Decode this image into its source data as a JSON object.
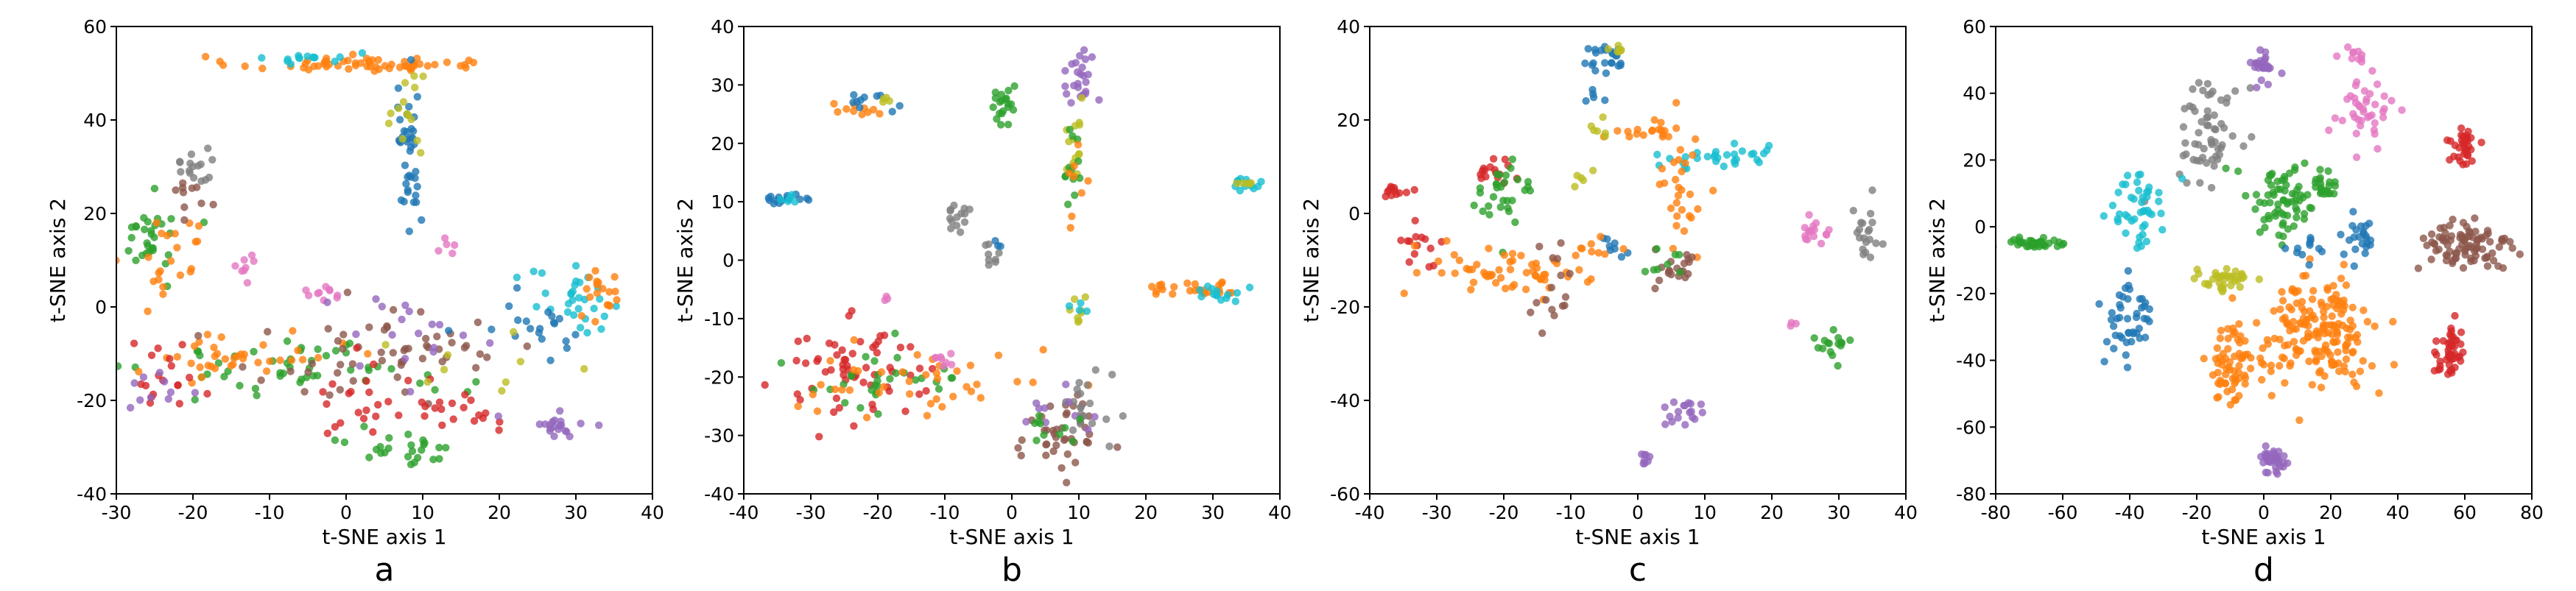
{
  "chart_data": [
    {
      "type": "scatter",
      "panel_label": "a",
      "xlabel": "t-SNE axis 1",
      "ylabel": "t-SNE axis 2",
      "xlim": [
        -30,
        40
      ],
      "ylim": [
        -40,
        60
      ],
      "xticks": [
        "-30",
        "-20",
        "-10",
        "0",
        "10",
        "20",
        "30",
        "40"
      ],
      "yticks": [
        "60",
        "40",
        "20",
        "0",
        "-20",
        "-40"
      ],
      "clusters": [
        {
          "color": "#ff7f0e",
          "cx": 1,
          "cy": 52,
          "sx": 8,
          "sy": 0.8,
          "n": 60
        },
        {
          "color": "#17becf",
          "cx": -4,
          "cy": 53,
          "sx": 3,
          "sy": 0.8,
          "n": 14
        },
        {
          "color": "#1f77b4",
          "cx": 8,
          "cy": 35,
          "sx": 1,
          "sy": 9,
          "n": 40
        },
        {
          "color": "#bcbd22",
          "cx": 8,
          "cy": 40,
          "sx": 1,
          "sy": 6,
          "n": 14
        },
        {
          "color": "#2ca02c",
          "cx": -25,
          "cy": 15,
          "sx": 2,
          "sy": 4,
          "n": 30
        },
        {
          "color": "#ff7f0e",
          "cx": -23,
          "cy": 12,
          "sx": 2.5,
          "sy": 5,
          "n": 22
        },
        {
          "color": "#7f7f7f",
          "cx": -20,
          "cy": 30,
          "sx": 1.5,
          "sy": 3,
          "n": 16
        },
        {
          "color": "#8c564b",
          "cx": -20,
          "cy": 25,
          "sx": 1.5,
          "sy": 3,
          "n": 10
        },
        {
          "color": "#e377c2",
          "cx": -13,
          "cy": 8,
          "sx": 1,
          "sy": 2,
          "n": 8
        },
        {
          "color": "#e377c2",
          "cx": 13,
          "cy": 12,
          "sx": 0.8,
          "sy": 1,
          "n": 5
        },
        {
          "color": "#e377c2",
          "cx": -2,
          "cy": 3,
          "sx": 1.5,
          "sy": 1,
          "n": 10
        },
        {
          "color": "#2ca02c",
          "cx": -5,
          "cy": -13,
          "sx": 10,
          "sy": 3,
          "n": 50
        },
        {
          "color": "#ff7f0e",
          "cx": -15,
          "cy": -11,
          "sx": 7,
          "sy": 3,
          "n": 40
        },
        {
          "color": "#8c564b",
          "cx": 5,
          "cy": -10,
          "sx": 10,
          "sy": 5,
          "n": 55
        },
        {
          "color": "#d62728",
          "cx": 10,
          "cy": -20,
          "sx": 8,
          "sy": 4,
          "n": 40
        },
        {
          "color": "#17becf",
          "cx": 30,
          "cy": 0,
          "sx": 3,
          "sy": 4,
          "n": 30
        },
        {
          "color": "#9467bd",
          "cx": 28,
          "cy": -25,
          "sx": 3,
          "sy": 1.5,
          "n": 20
        },
        {
          "color": "#2ca02c",
          "cx": 8,
          "cy": -30,
          "sx": 4,
          "sy": 2,
          "n": 25
        },
        {
          "color": "#d62728",
          "cx": -24,
          "cy": -15,
          "sx": 2,
          "sy": 4,
          "n": 18
        },
        {
          "color": "#9467bd",
          "cx": -25,
          "cy": -18,
          "sx": 2,
          "sy": 3,
          "n": 10
        },
        {
          "color": "#1f77b4",
          "cx": 25,
          "cy": -5,
          "sx": 4,
          "sy": 3,
          "n": 20
        },
        {
          "color": "#ff7f0e",
          "cx": 33,
          "cy": 3,
          "sx": 2,
          "sy": 3,
          "n": 18
        },
        {
          "color": "#9467bd",
          "cx": 10,
          "cy": -5,
          "sx": 8,
          "sy": 4,
          "n": 18
        },
        {
          "color": "#bcbd22",
          "cx": 20,
          "cy": -10,
          "sx": 8,
          "sy": 5,
          "n": 10
        }
      ]
    },
    {
      "type": "scatter",
      "panel_label": "b",
      "xlabel": "t-SNE axis 1",
      "ylabel": "t-SNE axis 2",
      "xlim": [
        -40,
        40
      ],
      "ylim": [
        -40,
        40
      ],
      "xticks": [
        "-40",
        "-30",
        "-20",
        "-10",
        "0",
        "10",
        "20",
        "30",
        "40"
      ],
      "yticks": [
        "40",
        "30",
        "20",
        "10",
        "0",
        "-10",
        "-20",
        "-30",
        "-40"
      ],
      "clusters": [
        {
          "color": "#1f77b4",
          "cx": -34,
          "cy": 10.5,
          "sx": 2,
          "sy": 0.4,
          "n": 16
        },
        {
          "color": "#17becf",
          "cx": -33,
          "cy": 10.5,
          "sx": 1.5,
          "sy": 0.4,
          "n": 6
        },
        {
          "color": "#ff7f0e",
          "cx": -24,
          "cy": 26,
          "sx": 2,
          "sy": 0.6,
          "n": 10
        },
        {
          "color": "#1f77b4",
          "cx": -21,
          "cy": 27,
          "sx": 2,
          "sy": 0.8,
          "n": 10
        },
        {
          "color": "#bcbd22",
          "cx": -20,
          "cy": 28,
          "sx": 1,
          "sy": 0.5,
          "n": 4
        },
        {
          "color": "#2ca02c",
          "cx": -1,
          "cy": 26,
          "sx": 1,
          "sy": 1.5,
          "n": 20
        },
        {
          "color": "#9467bd",
          "cx": 10,
          "cy": 31,
          "sx": 1.3,
          "sy": 3,
          "n": 24
        },
        {
          "color": "#bcbd22",
          "cx": 9.5,
          "cy": 20,
          "sx": 0.8,
          "sy": 5,
          "n": 14
        },
        {
          "color": "#2ca02c",
          "cx": 9,
          "cy": 16,
          "sx": 0.8,
          "sy": 4,
          "n": 12
        },
        {
          "color": "#ff7f0e",
          "cx": 10,
          "cy": 13,
          "sx": 0.8,
          "sy": 3,
          "n": 8
        },
        {
          "color": "#17becf",
          "cx": 35,
          "cy": 13,
          "sx": 1,
          "sy": 0.6,
          "n": 14
        },
        {
          "color": "#bcbd22",
          "cx": 35,
          "cy": 13.5,
          "sx": 0.8,
          "sy": 0.5,
          "n": 5
        },
        {
          "color": "#7f7f7f",
          "cx": -8,
          "cy": 8,
          "sx": 0.6,
          "sy": 2.5,
          "n": 14
        },
        {
          "color": "#7f7f7f",
          "cx": -3,
          "cy": 1,
          "sx": 0.8,
          "sy": 1,
          "n": 8
        },
        {
          "color": "#1f77b4",
          "cx": -2,
          "cy": 2.5,
          "sx": 0.5,
          "sy": 0.5,
          "n": 3
        },
        {
          "color": "#ff7f0e",
          "cx": 27,
          "cy": -5,
          "sx": 5,
          "sy": 0.6,
          "n": 26
        },
        {
          "color": "#17becf",
          "cx": 31,
          "cy": -5.5,
          "sx": 2,
          "sy": 0.8,
          "n": 14
        },
        {
          "color": "#bcbd22",
          "cx": 10,
          "cy": -8,
          "sx": 1,
          "sy": 2,
          "n": 8
        },
        {
          "color": "#17becf",
          "cx": 10,
          "cy": -7,
          "sx": 1,
          "sy": 1,
          "n": 4
        },
        {
          "color": "#d62728",
          "cx": -23,
          "cy": -19,
          "sx": 6,
          "sy": 4,
          "n": 60
        },
        {
          "color": "#2ca02c",
          "cx": -20,
          "cy": -21,
          "sx": 7,
          "sy": 3,
          "n": 30
        },
        {
          "color": "#ff7f0e",
          "cx": -12,
          "cy": -21,
          "sx": 9,
          "sy": 3,
          "n": 40
        },
        {
          "color": "#e377c2",
          "cx": -10,
          "cy": -17,
          "sx": 1.5,
          "sy": 1,
          "n": 8
        },
        {
          "color": "#e377c2",
          "cx": -19,
          "cy": -7,
          "sx": 0.6,
          "sy": 0.5,
          "n": 3
        },
        {
          "color": "#8c564b",
          "cx": 7,
          "cy": -30,
          "sx": 3,
          "sy": 3,
          "n": 40
        },
        {
          "color": "#7f7f7f",
          "cx": 11,
          "cy": -25,
          "sx": 2,
          "sy": 3,
          "n": 20
        },
        {
          "color": "#9467bd",
          "cx": 6,
          "cy": -26,
          "sx": 3,
          "sy": 2,
          "n": 10
        },
        {
          "color": "#2ca02c",
          "cx": 5,
          "cy": -29,
          "sx": 2,
          "sy": 2,
          "n": 10
        }
      ]
    },
    {
      "type": "scatter",
      "panel_label": "c",
      "xlabel": "t-SNE axis 1",
      "ylabel": "t-SNE axis 2",
      "xlim": [
        -40,
        40
      ],
      "ylim": [
        -60,
        40
      ],
      "xticks": [
        "-40",
        "-30",
        "-20",
        "-10",
        "0",
        "10",
        "20",
        "30",
        "40"
      ],
      "yticks": [
        "40",
        "20",
        "0",
        "-20",
        "-40",
        "-60"
      ],
      "clusters": [
        {
          "color": "#1f77b4",
          "cx": -5,
          "cy": 33,
          "sx": 2,
          "sy": 2,
          "n": 22
        },
        {
          "color": "#bcbd22",
          "cx": -3,
          "cy": 34,
          "sx": 1.5,
          "sy": 1,
          "n": 6
        },
        {
          "color": "#1f77b4",
          "cx": -7,
          "cy": 25,
          "sx": 1,
          "sy": 1.5,
          "n": 5
        },
        {
          "color": "#d62728",
          "cx": -35,
          "cy": 5,
          "sx": 1.2,
          "sy": 0.6,
          "n": 12
        },
        {
          "color": "#d62728",
          "cx": -32,
          "cy": -6,
          "sx": 1.5,
          "sy": 2,
          "n": 14
        },
        {
          "color": "#d62728",
          "cx": -22,
          "cy": 9,
          "sx": 2,
          "sy": 1.2,
          "n": 16
        },
        {
          "color": "#2ca02c",
          "cx": -20,
          "cy": 3,
          "sx": 2,
          "sy": 5,
          "n": 30
        },
        {
          "color": "#ff7f0e",
          "cx": -20,
          "cy": -12,
          "sx": 6,
          "sy": 3,
          "n": 55
        },
        {
          "color": "#8c564b",
          "cx": -13,
          "cy": -16,
          "sx": 1.5,
          "sy": 4,
          "n": 16
        },
        {
          "color": "#ff7f0e",
          "cx": 3,
          "cy": 18,
          "sx": 4,
          "sy": 1,
          "n": 16
        },
        {
          "color": "#bcbd22",
          "cx": -5,
          "cy": 18,
          "sx": 1,
          "sy": 1,
          "n": 6
        },
        {
          "color": "#bcbd22",
          "cx": -8,
          "cy": 7,
          "sx": 1,
          "sy": 1.5,
          "n": 5
        },
        {
          "color": "#17becf",
          "cx": 12,
          "cy": 12,
          "sx": 5,
          "sy": 1.5,
          "n": 30
        },
        {
          "color": "#ff7f0e",
          "cx": 6,
          "cy": 5,
          "sx": 2,
          "sy": 8,
          "n": 30
        },
        {
          "color": "#1f77b4",
          "cx": -3,
          "cy": -7,
          "sx": 1.5,
          "sy": 1.5,
          "n": 8
        },
        {
          "color": "#8c564b",
          "cx": 6,
          "cy": -12,
          "sx": 2,
          "sy": 2,
          "n": 20
        },
        {
          "color": "#2ca02c",
          "cx": 4,
          "cy": -10,
          "sx": 1.5,
          "sy": 1.5,
          "n": 8
        },
        {
          "color": "#ff7f0e",
          "cx": -6,
          "cy": -8,
          "sx": 2,
          "sy": 2,
          "n": 10
        },
        {
          "color": "#e377c2",
          "cx": 26,
          "cy": -5,
          "sx": 1.3,
          "sy": 1.5,
          "n": 16
        },
        {
          "color": "#7f7f7f",
          "cx": 34,
          "cy": -5,
          "sx": 1.5,
          "sy": 3,
          "n": 20
        },
        {
          "color": "#e377c2",
          "cx": 23,
          "cy": -24,
          "sx": 0.5,
          "sy": 0.5,
          "n": 3
        },
        {
          "color": "#2ca02c",
          "cx": 29,
          "cy": -28,
          "sx": 1.5,
          "sy": 1.5,
          "n": 16
        },
        {
          "color": "#9467bd",
          "cx": 7,
          "cy": -43,
          "sx": 1.5,
          "sy": 1.5,
          "n": 18
        },
        {
          "color": "#9467bd",
          "cx": 1,
          "cy": -52,
          "sx": 0.6,
          "sy": 1,
          "n": 8
        }
      ]
    },
    {
      "type": "scatter",
      "panel_label": "d",
      "xlabel": "t-SNE axis 1",
      "ylabel": "t-SNE axis 2",
      "xlim": [
        -80,
        80
      ],
      "ylim": [
        -80,
        60
      ],
      "xticks": [
        "-80",
        "-60",
        "-40",
        "-20",
        "0",
        "20",
        "40",
        "60",
        "80"
      ],
      "yticks": [
        "60",
        "40",
        "20",
        "0",
        "-20",
        "-40",
        "-60",
        "-80"
      ],
      "clusters": [
        {
          "color": "#7f7f7f",
          "cx": -16,
          "cy": 30,
          "sx": 5,
          "sy": 8,
          "n": 60
        },
        {
          "color": "#9467bd",
          "cx": 0,
          "cy": 48,
          "sx": 2,
          "sy": 2.5,
          "n": 25
        },
        {
          "color": "#e377c2",
          "cx": 28,
          "cy": 52,
          "sx": 1.5,
          "sy": 1,
          "n": 10
        },
        {
          "color": "#e377c2",
          "cx": 29,
          "cy": 33,
          "sx": 4,
          "sy": 5,
          "n": 40
        },
        {
          "color": "#d62728",
          "cx": 60,
          "cy": 24,
          "sx": 2,
          "sy": 3,
          "n": 35
        },
        {
          "color": "#17becf",
          "cx": -37,
          "cy": 6,
          "sx": 4,
          "sy": 6,
          "n": 45
        },
        {
          "color": "#2ca02c",
          "cx": 5,
          "cy": 8,
          "sx": 6,
          "sy": 6,
          "n": 70
        },
        {
          "color": "#2ca02c",
          "cx": 18,
          "cy": 12,
          "sx": 2,
          "sy": 2,
          "n": 20
        },
        {
          "color": "#1f77b4",
          "cx": 28,
          "cy": -3,
          "sx": 3,
          "sy": 4,
          "n": 22
        },
        {
          "color": "#2ca02c",
          "cx": -68,
          "cy": -5,
          "sx": 4,
          "sy": 1,
          "n": 40
        },
        {
          "color": "#8c564b",
          "cx": 60,
          "cy": -6,
          "sx": 7,
          "sy": 4,
          "n": 90
        },
        {
          "color": "#bcbd22",
          "cx": -12,
          "cy": -16,
          "sx": 6,
          "sy": 2,
          "n": 35
        },
        {
          "color": "#1f77b4",
          "cx": -40,
          "cy": -28,
          "sx": 4,
          "sy": 7,
          "n": 45
        },
        {
          "color": "#ff7f0e",
          "cx": 15,
          "cy": -32,
          "sx": 9,
          "sy": 8,
          "n": 180
        },
        {
          "color": "#ff7f0e",
          "cx": -10,
          "cy": -42,
          "sx": 4,
          "sy": 6,
          "n": 60
        },
        {
          "color": "#d62728",
          "cx": 56,
          "cy": -38,
          "sx": 2,
          "sy": 4,
          "n": 45
        },
        {
          "color": "#9467bd",
          "cx": 3,
          "cy": -70,
          "sx": 2.5,
          "sy": 2,
          "n": 35
        },
        {
          "color": "#1f77b4",
          "cx": 18,
          "cy": -7,
          "sx": 5,
          "sy": 2,
          "n": 12
        }
      ]
    }
  ]
}
